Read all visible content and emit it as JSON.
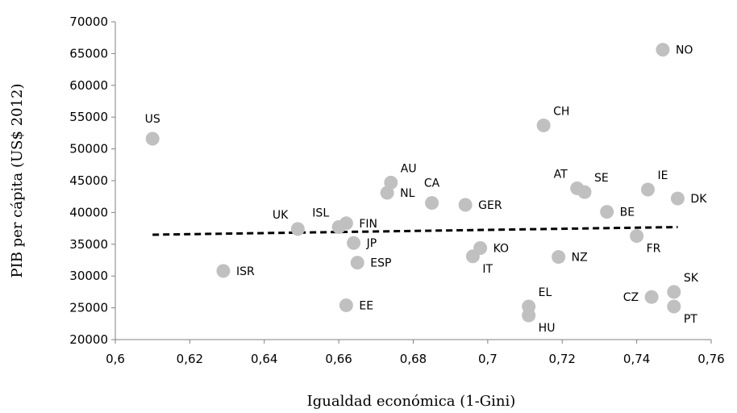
{
  "chart_data": {
    "type": "scatter",
    "title": "",
    "xlabel": "Igualdad económica (1-Gini)",
    "ylabel": "PIB per cápita (US$ 2012)",
    "xlim": [
      0.6,
      0.76
    ],
    "ylim": [
      20000,
      70000
    ],
    "xticks": [
      0.6,
      0.62,
      0.64,
      0.66,
      0.68,
      0.7,
      0.72,
      0.74,
      0.76
    ],
    "yticks": [
      20000,
      25000,
      30000,
      35000,
      40000,
      45000,
      50000,
      55000,
      60000,
      65000,
      70000
    ],
    "xtick_labels": [
      "0,6",
      "0,62",
      "0,64",
      "0,66",
      "0,68",
      "0,7",
      "0,72",
      "0,74",
      "0,76"
    ],
    "ytick_labels": [
      "20000",
      "25000",
      "30000",
      "35000",
      "40000",
      "45000",
      "50000",
      "55000",
      "60000",
      "65000",
      "70000"
    ],
    "grid": false,
    "point_color": "#c0c0c0",
    "trendline": {
      "style": "dashed",
      "color": "#000000",
      "x": [
        0.61,
        0.751
      ],
      "y": [
        36500,
        37700
      ]
    },
    "points": [
      {
        "label": "US",
        "x": 0.61,
        "y": 51600,
        "label_pos": "above"
      },
      {
        "label": "ISR",
        "x": 0.629,
        "y": 30800,
        "label_pos": "right"
      },
      {
        "label": "UK",
        "x": 0.649,
        "y": 37400,
        "label_pos": "upper-left"
      },
      {
        "label": "ISL",
        "x": 0.66,
        "y": 37700,
        "label_pos": "upper-left"
      },
      {
        "label": "FIN",
        "x": 0.662,
        "y": 38300,
        "label_pos": "right"
      },
      {
        "label": "JP",
        "x": 0.664,
        "y": 35200,
        "label_pos": "right"
      },
      {
        "label": "ESP",
        "x": 0.665,
        "y": 32100,
        "label_pos": "right"
      },
      {
        "label": "EE",
        "x": 0.662,
        "y": 25400,
        "label_pos": "right"
      },
      {
        "label": "NL",
        "x": 0.673,
        "y": 43100,
        "label_pos": "right"
      },
      {
        "label": "AU",
        "x": 0.674,
        "y": 44700,
        "label_pos": "upper-right"
      },
      {
        "label": "CA",
        "x": 0.685,
        "y": 41500,
        "label_pos": "above"
      },
      {
        "label": "GER",
        "x": 0.694,
        "y": 41200,
        "label_pos": "right"
      },
      {
        "label": "KO",
        "x": 0.698,
        "y": 34400,
        "label_pos": "right"
      },
      {
        "label": "IT",
        "x": 0.696,
        "y": 33100,
        "label_pos": "lower-right"
      },
      {
        "label": "EL",
        "x": 0.711,
        "y": 25200,
        "label_pos": "upper-right"
      },
      {
        "label": "HU",
        "x": 0.711,
        "y": 23800,
        "label_pos": "lower-right"
      },
      {
        "label": "CH",
        "x": 0.715,
        "y": 53700,
        "label_pos": "upper-right"
      },
      {
        "label": "NZ",
        "x": 0.719,
        "y": 33000,
        "label_pos": "right"
      },
      {
        "label": "AT",
        "x": 0.724,
        "y": 43800,
        "label_pos": "upper-left"
      },
      {
        "label": "SE",
        "x": 0.726,
        "y": 43200,
        "label_pos": "upper-right"
      },
      {
        "label": "BE",
        "x": 0.732,
        "y": 40100,
        "label_pos": "right"
      },
      {
        "label": "FR",
        "x": 0.74,
        "y": 36300,
        "label_pos": "lower-right"
      },
      {
        "label": "IE",
        "x": 0.743,
        "y": 43600,
        "label_pos": "upper-right"
      },
      {
        "label": "CZ",
        "x": 0.744,
        "y": 26700,
        "label_pos": "left"
      },
      {
        "label": "NO",
        "x": 0.747,
        "y": 65600,
        "label_pos": "right"
      },
      {
        "label": "SK",
        "x": 0.75,
        "y": 27500,
        "label_pos": "upper-right"
      },
      {
        "label": "PT",
        "x": 0.75,
        "y": 25200,
        "label_pos": "lower-right"
      },
      {
        "label": "DK",
        "x": 0.751,
        "y": 42200,
        "label_pos": "right"
      }
    ]
  }
}
